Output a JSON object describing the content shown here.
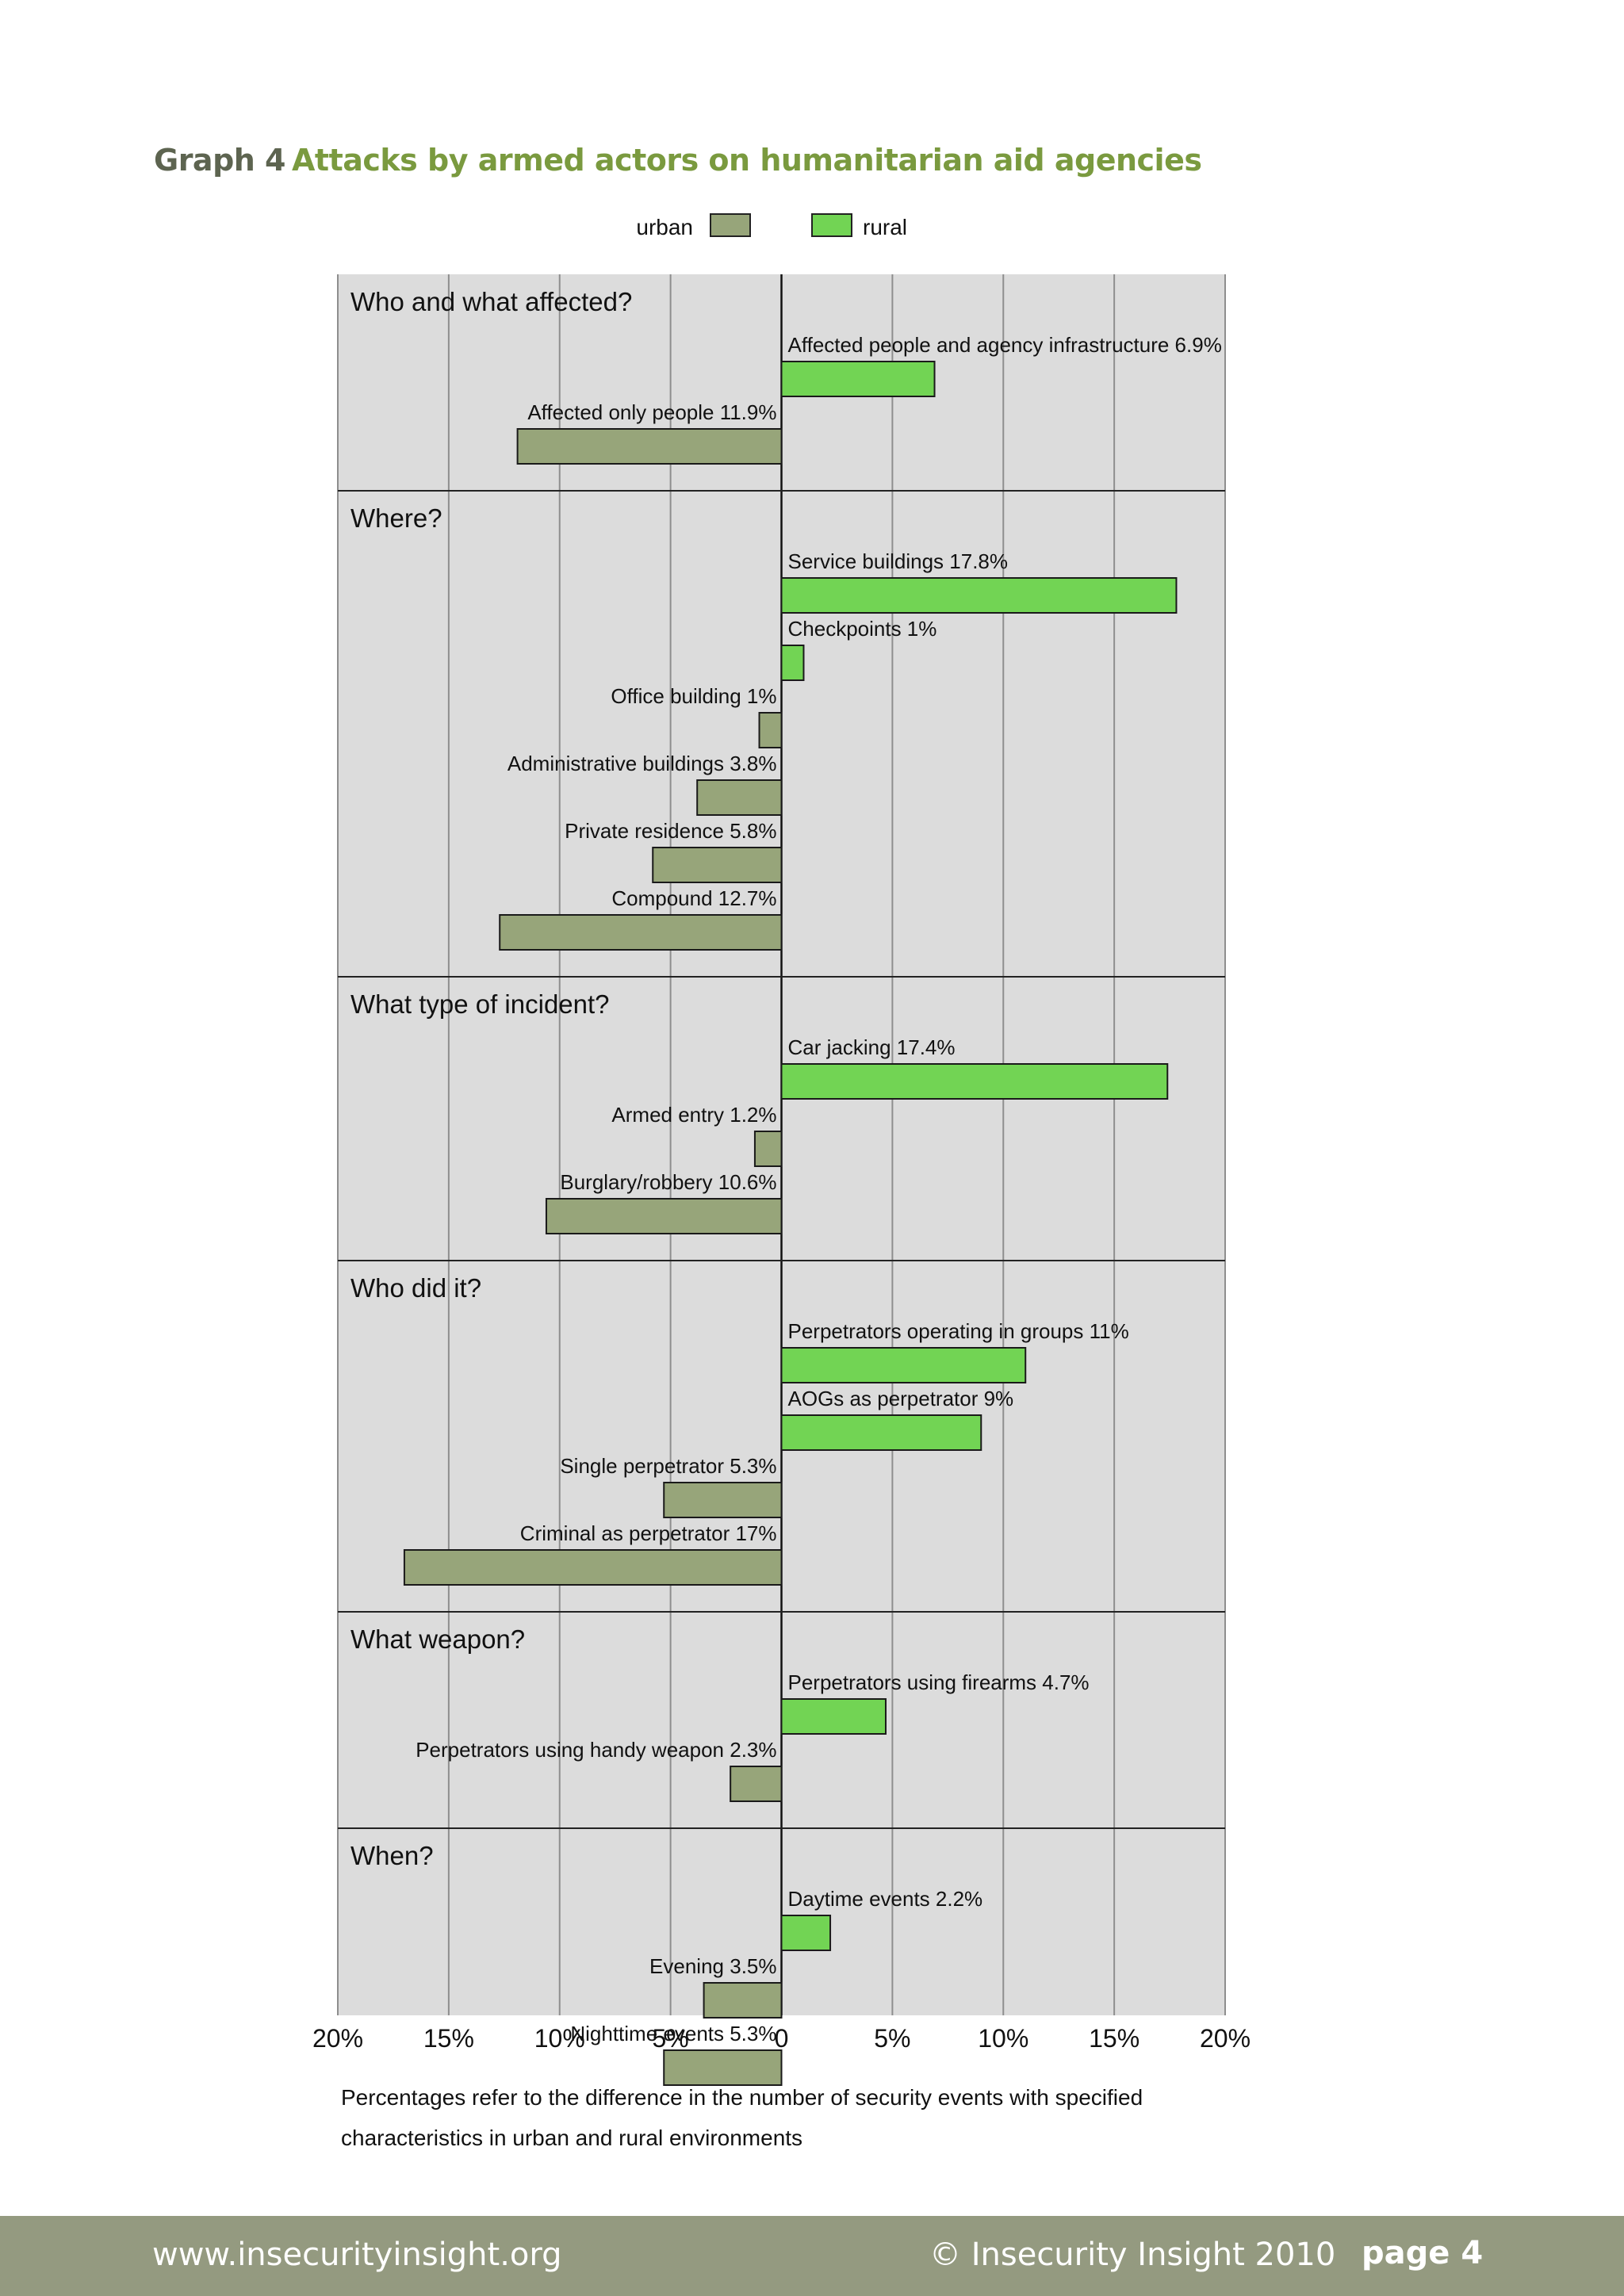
{
  "title": {
    "label": "Graph 4",
    "text": "Attacks by armed actors on humanitarian aid agencies"
  },
  "colors": {
    "urban": "#97a57a",
    "rural": "#72d454",
    "panel": "#dcdcdc",
    "title_label": "#5d6450",
    "title_text": "#7a9a3f",
    "footer": "#949a80"
  },
  "chart_data": {
    "type": "bar",
    "orientation": "horizontal-diverging",
    "legend": [
      {
        "name": "urban",
        "color": "#97a57a"
      },
      {
        "name": "rural",
        "color": "#72d454"
      }
    ],
    "xlim": [
      -20,
      20
    ],
    "x_ticks": [
      "20%",
      "15%",
      "10%",
      "5%",
      "0",
      "5%",
      "10%",
      "15%",
      "20%"
    ],
    "grid": true,
    "sections": [
      {
        "heading": "Who and what affected?",
        "bars": [
          {
            "label": "Affected people and agency infrastructure 6.9%",
            "series": "rural",
            "value": 6.9
          },
          {
            "label": "Affected only people 11.9%",
            "series": "urban",
            "value": 11.9
          }
        ]
      },
      {
        "heading": "Where?",
        "bars": [
          {
            "label": "Service buildings 17.8%",
            "series": "rural",
            "value": 17.8
          },
          {
            "label": "Checkpoints 1%",
            "series": "rural",
            "value": 1
          },
          {
            "label": "Office building 1%",
            "series": "urban",
            "value": 1
          },
          {
            "label": "Administrative buildings 3.8%",
            "series": "urban",
            "value": 3.8
          },
          {
            "label": "Private residence 5.8%",
            "series": "urban",
            "value": 5.8
          },
          {
            "label": "Compound 12.7%",
            "series": "urban",
            "value": 12.7
          }
        ]
      },
      {
        "heading": "What type of incident?",
        "bars": [
          {
            "label": "Car jacking 17.4%",
            "series": "rural",
            "value": 17.4
          },
          {
            "label": "Armed entry 1.2%",
            "series": "urban",
            "value": 1.2
          },
          {
            "label": "Burglary/robbery 10.6%",
            "series": "urban",
            "value": 10.6
          }
        ]
      },
      {
        "heading": "Who did it?",
        "bars": [
          {
            "label": "Perpetrators operating in groups 11%",
            "series": "rural",
            "value": 11
          },
          {
            "label": "AOGs as perpetrator  9%",
            "series": "rural",
            "value": 9
          },
          {
            "label": "Single perpetrator 5.3%",
            "series": "urban",
            "value": 5.3
          },
          {
            "label": "Criminal as perpetrator 17%",
            "series": "urban",
            "value": 17
          }
        ]
      },
      {
        "heading": "What weapon?",
        "bars": [
          {
            "label": "Perpetrators using firearms 4.7%",
            "series": "rural",
            "value": 4.7
          },
          {
            "label": "Perpetrators using handy weapon 2.3%",
            "series": "urban",
            "value": 2.3
          }
        ]
      },
      {
        "heading": "When?",
        "bars": [
          {
            "label": "Daytime events 2.2%",
            "series": "rural",
            "value": 2.2
          },
          {
            "label": "Evening 3.5%",
            "series": "urban",
            "value": 3.5
          },
          {
            "label": "Nighttime events 5.3%",
            "series": "urban",
            "value": 5.3
          }
        ]
      }
    ]
  },
  "note": {
    "line1": "Percentages refer to the difference in the number of security events with specified",
    "line2": "characteristics in urban and rural environments"
  },
  "footer": {
    "url": "www.insecurityinsight.org",
    "copyright": "© Insecurity Insight 2010",
    "page": "page 4"
  }
}
